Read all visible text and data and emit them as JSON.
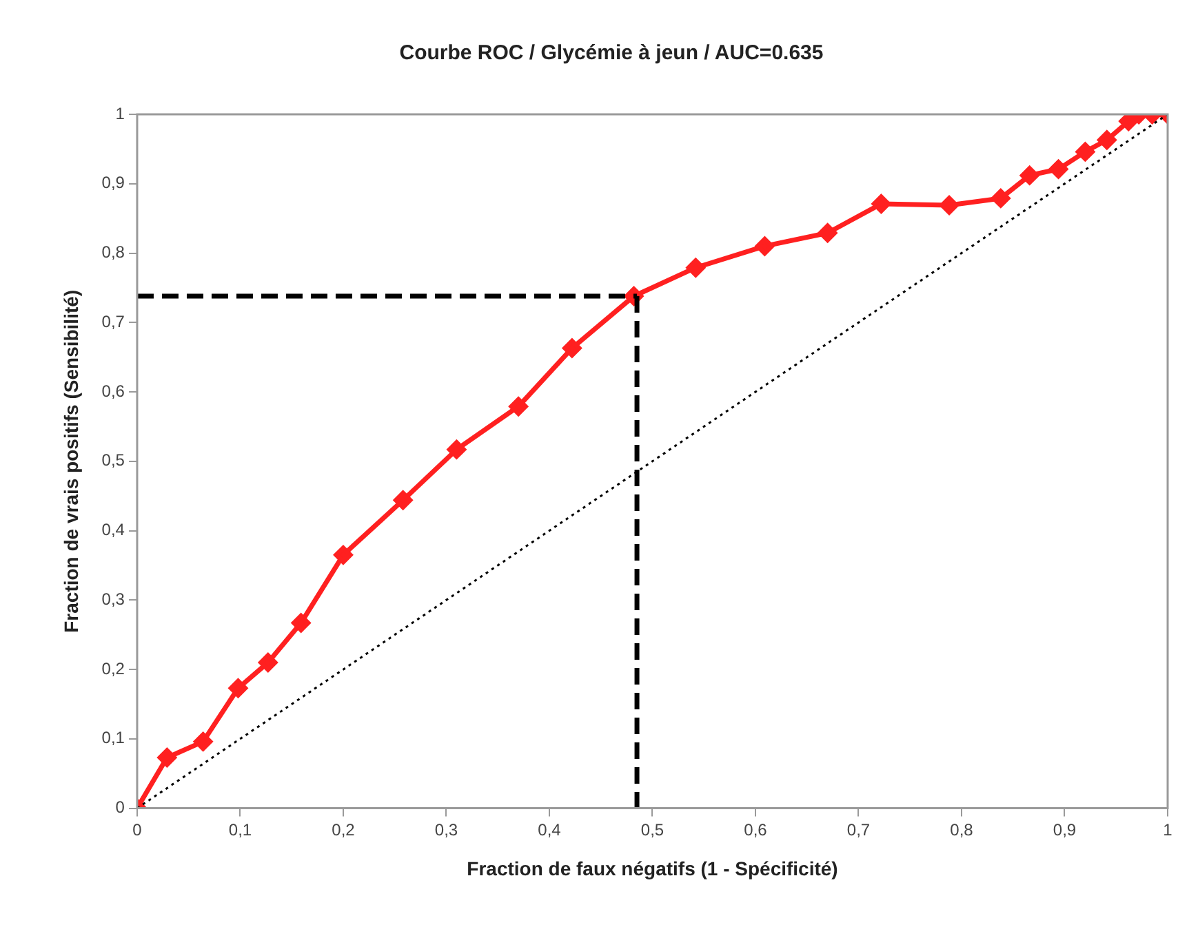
{
  "chart_data": {
    "type": "line",
    "title": "Courbe ROC / Glycémie à jeun / AUC=0.635",
    "xlabel": "Fraction de faux négatifs (1 - Spécificité)",
    "ylabel": "Fraction de vrais positifs (Sensibilité)",
    "xlim": [
      0,
      1
    ],
    "ylim": [
      0,
      1
    ],
    "xticks": [
      0,
      {
        "value": 0.1,
        "label": "0,1"
      },
      {
        "value": 0.2,
        "label": "0,2"
      },
      {
        "value": 0.3,
        "label": "0,3"
      },
      {
        "value": 0.4,
        "label": "0,4"
      },
      {
        "value": 0.5,
        "label": "0,5"
      },
      {
        "value": 0.6,
        "label": "0,6"
      },
      {
        "value": 0.7,
        "label": "0,7"
      },
      {
        "value": 0.8,
        "label": "0,8"
      },
      {
        "value": 0.9,
        "label": "0,9"
      },
      1
    ],
    "yticks": [
      0,
      {
        "value": 0.1,
        "label": "0,1"
      },
      {
        "value": 0.2,
        "label": "0,2"
      },
      {
        "value": 0.3,
        "label": "0,3"
      },
      {
        "value": 0.4,
        "label": "0,4"
      },
      {
        "value": 0.5,
        "label": "0,5"
      },
      {
        "value": 0.6,
        "label": "0,6"
      },
      {
        "value": 0.7,
        "label": "0,7"
      },
      {
        "value": 0.8,
        "label": "0,8"
      },
      {
        "value": 0.9,
        "label": "0,9"
      },
      1
    ],
    "grid": false,
    "legend": false,
    "series": [
      {
        "color": "#000000",
        "line_style": "dotted",
        "marker": "none",
        "x": [
          0,
          1
        ],
        "values": [
          0,
          1
        ]
      },
      {
        "color": "#000000",
        "line_style": "dashed",
        "marker": "none",
        "x": [
          0,
          0.485
        ],
        "values": [
          0.738,
          0.738
        ]
      },
      {
        "color": "#000000",
        "line_style": "dashed",
        "marker": "none",
        "x": [
          0.485,
          0.485
        ],
        "values": [
          0.738,
          0
        ]
      },
      {
        "color": "#ff2020",
        "line_style": "solid",
        "marker": "diamond",
        "x": [
          0,
          0.029,
          0.064,
          0.098,
          0.127,
          0.159,
          0.2,
          0.258,
          0.31,
          0.37,
          0.422,
          0.482,
          0.542,
          0.609,
          0.67,
          0.722,
          0.788,
          0.838,
          0.866,
          0.894,
          0.92,
          0.941,
          0.962,
          0.972,
          0.985,
          1
        ],
        "values": [
          0,
          0.073,
          0.096,
          0.173,
          0.21,
          0.267,
          0.365,
          0.444,
          0.517,
          0.579,
          0.663,
          0.738,
          0.779,
          0.81,
          0.829,
          0.871,
          0.869,
          0.879,
          0.912,
          0.921,
          0.946,
          0.963,
          0.99,
          1,
          1,
          1
        ]
      }
    ]
  }
}
